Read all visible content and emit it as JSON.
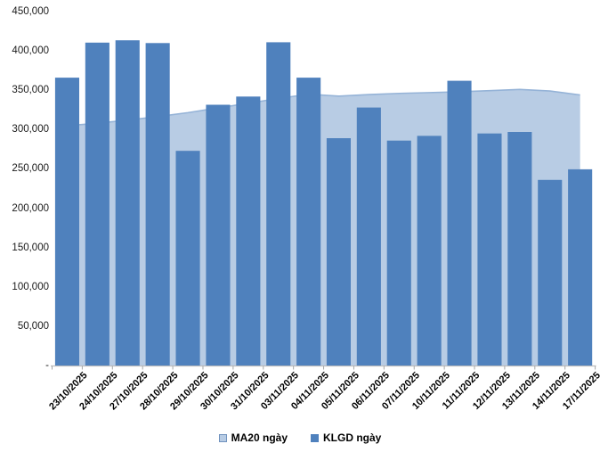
{
  "chart_data": {
    "type": "bar",
    "title": "",
    "xlabel": "",
    "ylabel": "",
    "grid": false,
    "legend_position": "bottom",
    "ylim": [
      0,
      450000
    ],
    "categories": [
      "23/10/2025",
      "24/10/2025",
      "27/10/2025",
      "28/10/2025",
      "29/10/2025",
      "30/10/2025",
      "31/10/2025",
      "03/11/2025",
      "04/11/2025",
      "05/11/2025",
      "06/11/2025",
      "07/11/2025",
      "10/11/2025",
      "11/11/2025",
      "12/11/2025",
      "13/11/2025",
      "14/11/2025",
      "17/11/2025"
    ],
    "series": [
      {
        "name": "MA20 ngày",
        "chart_type": "area",
        "color": "#b8cce4",
        "line_color": "#95b3d7",
        "values": [
          305000,
          308000,
          312000,
          316500,
          321500,
          327500,
          333500,
          339500,
          345000,
          342500,
          344500,
          346000,
          347000,
          348000,
          349500,
          351000,
          349000,
          344000
        ]
      },
      {
        "name": "KLGD ngày",
        "chart_type": "bar",
        "color": "#4f81bd",
        "values": [
          366000,
          410500,
          413500,
          410000,
          273000,
          331500,
          342000,
          411000,
          366000,
          289000,
          328000,
          286000,
          292000,
          362000,
          295000,
          297000,
          236000,
          249500
        ]
      }
    ],
    "y_ticks": [
      {
        "label": "450,000",
        "value": 450000
      },
      {
        "label": "400,000",
        "value": 400000
      },
      {
        "label": "350,000",
        "value": 350000
      },
      {
        "label": "300,000",
        "value": 300000
      },
      {
        "label": "250,000",
        "value": 250000
      },
      {
        "label": "200,000",
        "value": 200000
      },
      {
        "label": "150,000",
        "value": 150000
      },
      {
        "label": "100,000",
        "value": 100000
      },
      {
        "label": "50,000",
        "value": 50000
      },
      {
        "label": "-",
        "value": 0
      }
    ],
    "axis_color": "#bfbfbf",
    "tick_color": "#a6a6a6"
  }
}
